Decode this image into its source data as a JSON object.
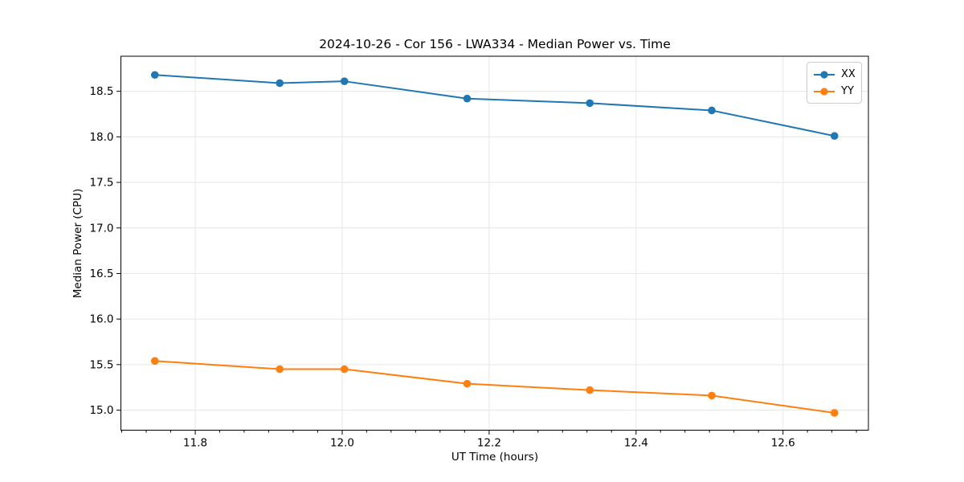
{
  "chart_data": {
    "type": "line",
    "title": "2024-10-26 - Cor 156 - LWA334 - Median Power vs. Time",
    "xlabel": "UT Time (hours)",
    "ylabel": "Median Power (CPU)",
    "xlim": [
      11.6988,
      12.7162
    ],
    "ylim": [
      14.78,
      18.885
    ],
    "x_ticks": [
      11.8,
      12.0,
      12.2,
      12.4,
      12.6
    ],
    "x_tick_labels": [
      "11.8",
      "12.0",
      "12.2",
      "12.4",
      "12.6"
    ],
    "x_minor_tick_step": 0.033333,
    "y_ticks": [
      15.0,
      15.5,
      16.0,
      16.5,
      17.0,
      17.5,
      18.0,
      18.5
    ],
    "y_tick_labels": [
      "15.0",
      "15.5",
      "16.0",
      "16.5",
      "17.0",
      "17.5",
      "18.0",
      "18.5"
    ],
    "grid": true,
    "grid_color": "#e6e6e6",
    "legend_position": "upper right",
    "x": [
      11.745,
      11.915,
      12.003,
      12.17,
      12.337,
      12.503,
      12.67
    ],
    "series": [
      {
        "name": "XX",
        "color": "#1f77b4",
        "values": [
          18.68,
          18.59,
          18.61,
          18.42,
          18.37,
          18.29,
          18.01
        ]
      },
      {
        "name": "YY",
        "color": "#ff7f0e",
        "values": [
          15.54,
          15.45,
          15.45,
          15.29,
          15.22,
          15.16,
          14.97
        ]
      }
    ]
  }
}
